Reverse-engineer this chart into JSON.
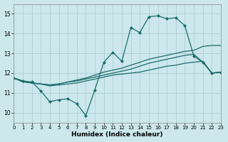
{
  "title": "",
  "xlabel": "Humidex (Indice chaleur)",
  "xlim": [
    0,
    23
  ],
  "ylim": [
    9.5,
    15.5
  ],
  "xticks": [
    0,
    1,
    2,
    3,
    4,
    5,
    6,
    7,
    8,
    9,
    10,
    11,
    12,
    13,
    14,
    15,
    16,
    17,
    18,
    19,
    20,
    21,
    22,
    23
  ],
  "yticks": [
    10,
    11,
    12,
    13,
    14,
    15
  ],
  "bg_color": "#cce8ec",
  "grid_color": "#b0ced2",
  "line_color": "#1a6b6b",
  "line1_y": [
    11.75,
    11.6,
    11.55,
    11.1,
    10.55,
    10.65,
    10.7,
    10.45,
    9.85,
    11.15,
    12.55,
    13.05,
    12.6,
    14.3,
    14.05,
    14.85,
    14.9,
    14.75,
    14.8,
    14.4,
    12.85,
    12.55,
    12.0,
    12.05
  ],
  "line2_y": [
    11.75,
    11.6,
    11.5,
    11.45,
    11.4,
    11.45,
    11.55,
    11.65,
    11.75,
    11.9,
    12.05,
    12.15,
    12.25,
    12.4,
    12.55,
    12.7,
    12.8,
    12.9,
    13.0,
    13.1,
    13.15,
    13.35,
    13.4,
    13.4
  ],
  "line3_y": [
    11.75,
    11.6,
    11.5,
    11.45,
    11.4,
    11.45,
    11.55,
    11.6,
    11.7,
    11.8,
    11.9,
    12.0,
    12.1,
    12.2,
    12.35,
    12.5,
    12.6,
    12.7,
    12.8,
    12.9,
    12.95,
    12.55,
    12.0,
    12.05
  ],
  "line4_y": [
    11.75,
    11.55,
    11.5,
    11.45,
    11.35,
    11.4,
    11.45,
    11.5,
    11.6,
    11.7,
    11.8,
    11.9,
    11.95,
    12.0,
    12.05,
    12.15,
    12.25,
    12.35,
    12.4,
    12.5,
    12.55,
    12.6,
    12.0,
    12.05
  ]
}
